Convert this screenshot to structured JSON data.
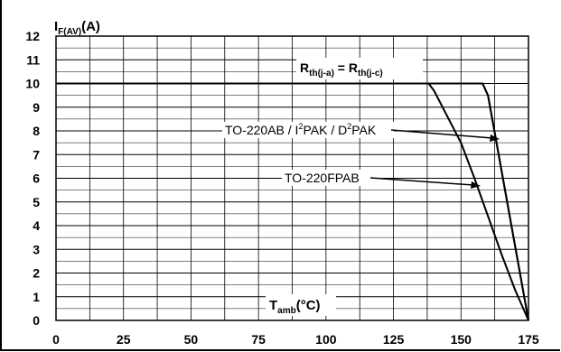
{
  "chart_data": {
    "type": "line",
    "xlim": [
      0,
      175
    ],
    "ylim": [
      0,
      12
    ],
    "x_ticks": [
      "0",
      "25",
      "50",
      "75",
      "100",
      "125",
      "150",
      "175"
    ],
    "y_ticks": [
      "0",
      "1",
      "2",
      "3",
      "4",
      "5",
      "6",
      "7",
      "8",
      "9",
      "10",
      "11",
      "12"
    ],
    "grid": true,
    "ylabel": {
      "main": "I",
      "sub": "F(AV)",
      "tail": "(A)"
    },
    "xlabel": {
      "main": "T",
      "sub": "amb",
      "tail": "(°C)"
    },
    "series": [
      {
        "name": "R_th(j-a) = R_th(j-c)",
        "x": [
          0,
          158,
          160,
          175
        ],
        "y": [
          10,
          10,
          9.5,
          0
        ]
      },
      {
        "name": "TO-220AB / I²PAK / D²PAK",
        "x": [
          0,
          158,
          160,
          175
        ],
        "y": [
          10,
          10,
          9.5,
          0
        ]
      },
      {
        "name": "TO-220FPAB",
        "x": [
          0,
          138,
          140,
          145,
          150,
          155,
          160,
          165,
          170,
          175
        ],
        "y": [
          10,
          10,
          9.7,
          8.6,
          7.5,
          6.0,
          4.4,
          2.8,
          1.3,
          0
        ]
      }
    ],
    "annotations": {
      "rth": {
        "r": "R",
        "s1": "th(j-a)",
        "mid": " = R",
        "s2": "th(j-c)"
      },
      "to220ab": {
        "a": "TO-220AB / I",
        "sup1": "2",
        "b": "PAK / D",
        "sup2": "2",
        "c": "PAK"
      },
      "to220fpab": {
        "text": "TO-220FPAB"
      }
    }
  }
}
